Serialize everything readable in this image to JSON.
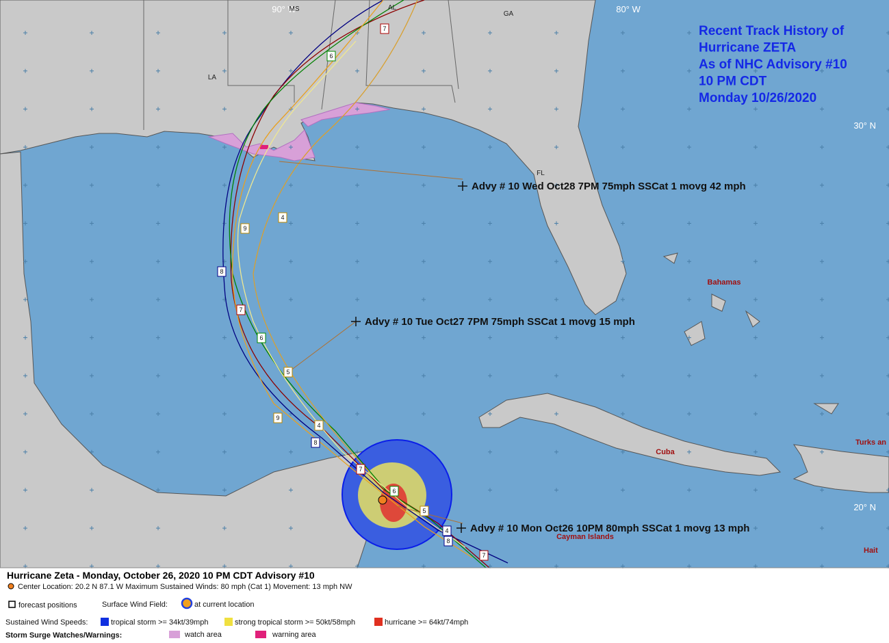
{
  "title_box": [
    "Recent Track History of",
    "Hurricane ZETA",
    "As of NHC Advisory #10",
    "10 PM CDT",
    "Monday 10/26/2020"
  ],
  "grid_labels": [
    "90° W",
    "80° W",
    "30° N",
    "20° N"
  ],
  "state_labels": [
    "MS",
    "AL",
    "GA",
    "LA",
    "FL"
  ],
  "place_labels": [
    "Bahamas",
    "Cuba",
    "Cayman Islands",
    "Turks an",
    "Hait"
  ],
  "advisories": [
    "Advy # 10 Wed Oct28 7PM  75mph SSCat 1 movg 42 mph",
    "Advy # 10 Tue Oct27 7PM  75mph SSCat 1 movg 15 mph",
    "Advy # 10 Mon Oct26 10PM  80mph SSCat 1 movg 13 mph"
  ],
  "track_boxes": [
    "7",
    "6",
    "9",
    "4",
    "8",
    "7",
    "6",
    "5",
    "9",
    "4",
    "8",
    "7",
    "6",
    "5",
    "4",
    "8",
    "7"
  ],
  "legend": {
    "header": "Hurricane Zeta  -  Monday, October 26, 2020  10 PM CDT   Advisory #10",
    "center": "Center Location: 20.2 N  87.1 W   Maximum Sustained Winds: 80 mph (Cat 1) Movement: 13 mph NW",
    "forecast": "forecast positions",
    "wind_field": "Surface Wind Field:",
    "current": "at current location",
    "speeds": "Sustained Wind Speeds:",
    "ts": "tropical storm >= 34kt/39mph",
    "sts": "strong tropical storm >= 50kt/58mph",
    "hu": "hurricane >= 64kt/74mph",
    "surge": "Storm Surge Watches/Warnings:",
    "watch": "watch area",
    "warning": "warning area"
  }
}
